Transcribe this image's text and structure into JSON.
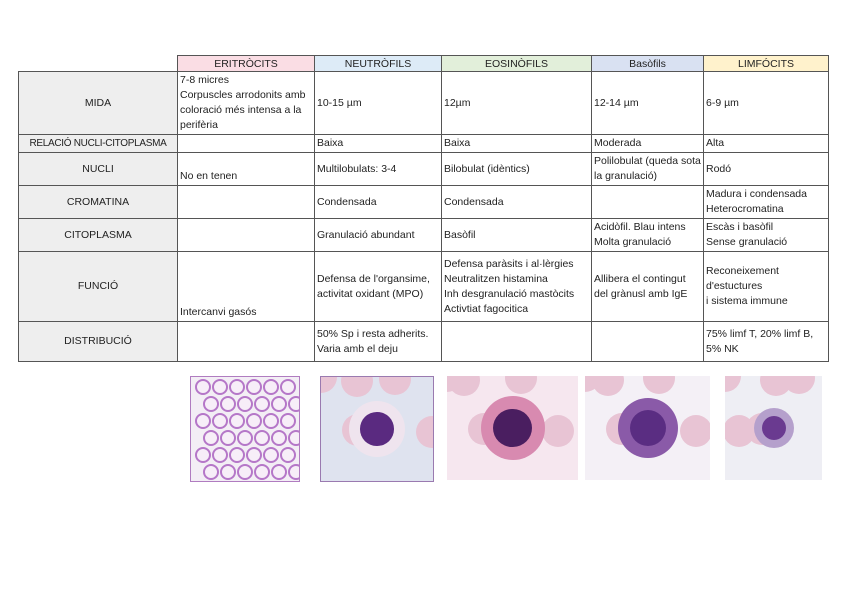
{
  "columns": [
    {
      "label": "ERITRÒCITS",
      "color": "#fadde4"
    },
    {
      "label": "NEUTRÒFILS",
      "color": "#ddebf7"
    },
    {
      "label": "EOSINÒFILS",
      "color": "#e2efda"
    },
    {
      "label": "Basòfils",
      "color": "#d9e1f2"
    },
    {
      "label": "LIMFÓCITS",
      "color": "#fff2cc"
    }
  ],
  "rows": [
    {
      "label": "MIDA",
      "cells": [
        "7-8 micres\nCorpuscles arrodonits amb coloració més intensa a la perifèria",
        "10-15 µm",
        "12µm",
        "12-14 µm",
        "6-9 µm"
      ]
    },
    {
      "label": "RELACIÓ NUCLI-CITOPLASMA",
      "cells": [
        "",
        "Baixa",
        "Baixa",
        "Moderada",
        "Alta"
      ]
    },
    {
      "label": "NUCLI",
      "cells": [
        "No en tenen",
        "Multilobulats: 3-4",
        "Bilobulat (idèntics)",
        "Polilobulat  (queda sota la granulació)",
        "Rodó"
      ]
    },
    {
      "label": "CROMATINA",
      "cells": [
        "",
        "Condensada",
        "Condensada",
        "",
        "Madura i condensada\nHeterocromatina"
      ]
    },
    {
      "label": "CITOPLASMA",
      "cells": [
        "",
        "Granulació abundant",
        "Basòfil",
        "Acidòfil. Blau intens\nMolta granulació",
        "Escàs i basòfil\nSense granulació"
      ]
    },
    {
      "label": "FUNCIÓ",
      "cells": [
        "Intercanvi gasós",
        "Defensa de l'organsime, activitat oxidant (MPO)",
        "Defensa paràsits i al·lèrgies\nNeutralitzen histamina\nInh desgranulació mastòcits\nActivtiat fagocitica",
        "Allibera el contingut del grànusl amb IgE",
        "Reconeixement\nd'estuctures\ni sistema immune"
      ]
    },
    {
      "label": "DISTRIBUCIÓ",
      "cells": [
        "",
        "50% Sp i resta adherits. Varia amb el deju",
        "",
        "",
        "75% limf T, 20% limf B, 5% NK"
      ]
    }
  ],
  "images": [
    "erythrocytes-micrograph",
    "neutrophil-micrograph",
    "eosinophil-micrograph",
    "basophil-micrograph",
    "lymphocyte-micrograph"
  ]
}
